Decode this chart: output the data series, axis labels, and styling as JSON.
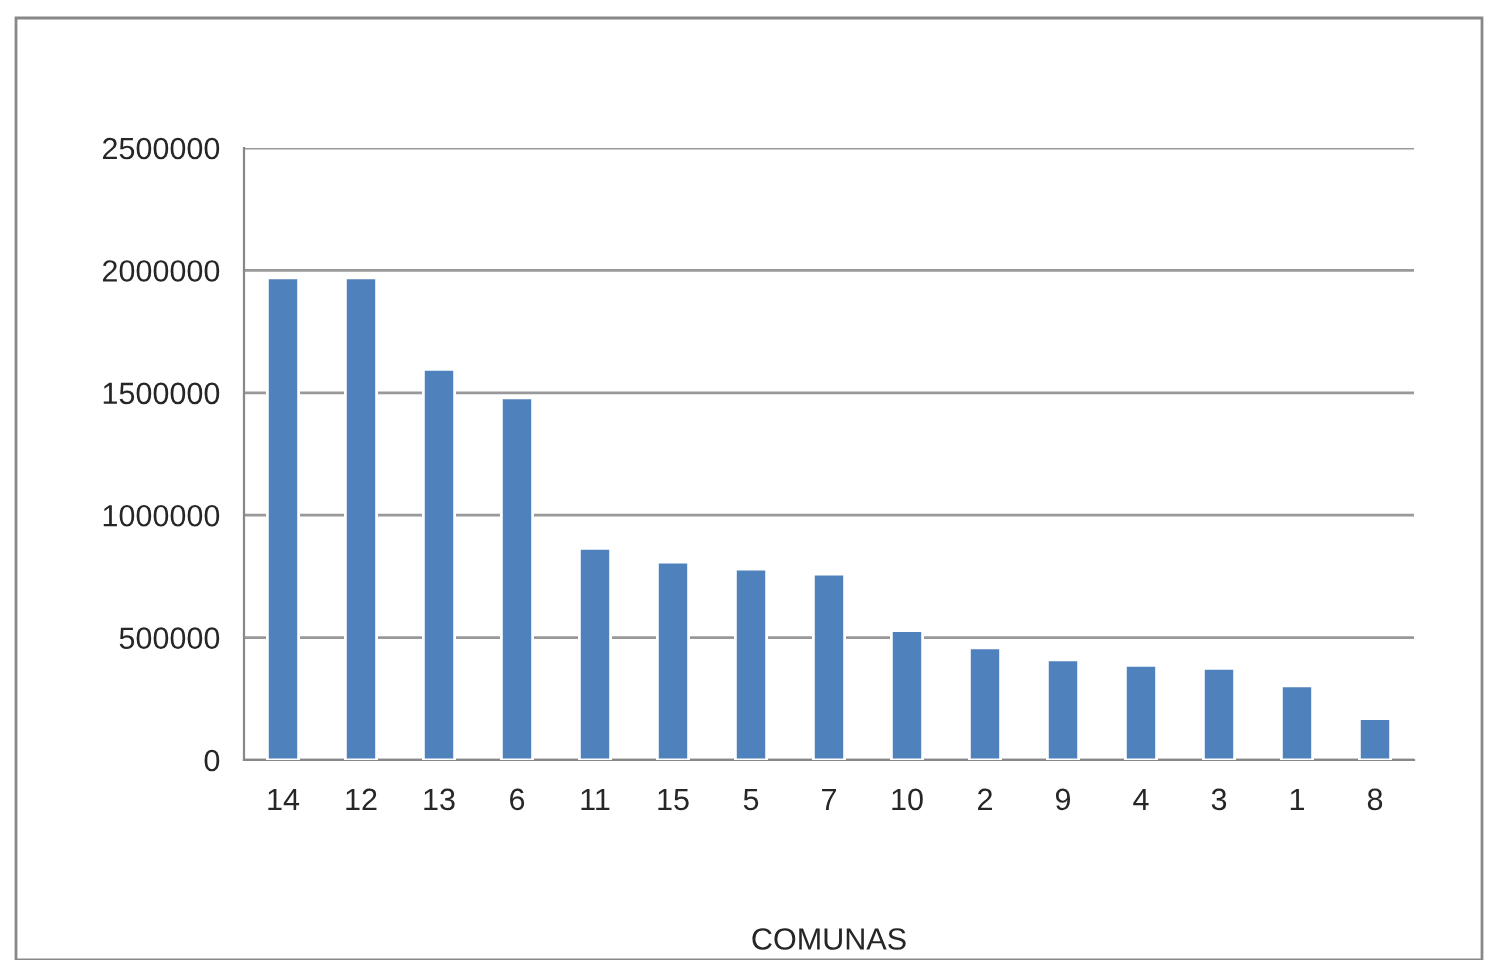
{
  "chart_data": {
    "type": "bar",
    "xlabel": "COMUNAS",
    "categories": [
      "14",
      "12",
      "13",
      "6",
      "11",
      "15",
      "5",
      "7",
      "10",
      "2",
      "9",
      "4",
      "3",
      "1",
      "8"
    ],
    "values": [
      1970000,
      1970000,
      1596000,
      1479000,
      865000,
      808000,
      780000,
      759000,
      529000,
      458000,
      409000,
      387000,
      374000,
      303000,
      169000
    ],
    "color": "#4f81bd",
    "ylim": [
      0,
      2500000
    ],
    "yticks": [
      0,
      500000,
      1000000,
      1500000,
      2000000,
      2500000
    ],
    "grid": "y",
    "legend": false
  }
}
